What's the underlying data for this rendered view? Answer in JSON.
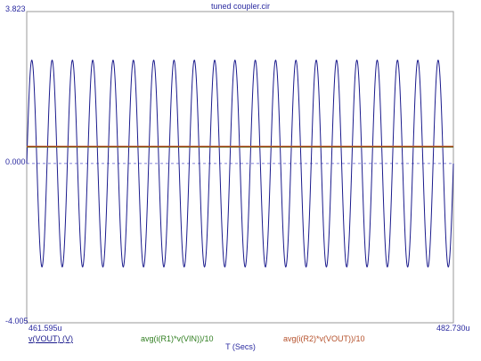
{
  "chart_data": {
    "type": "line",
    "title": "tuned coupler.cir",
    "xlabel": "T (Secs)",
    "ylabel": "",
    "x_unit_suffix": "u",
    "xlim": [
      461.595,
      482.73
    ],
    "ylim": [
      -4.005,
      3.823
    ],
    "x_tick_labels": [
      "461.595u",
      "482.730u"
    ],
    "y_tick_labels": [
      "3.823",
      "0.000",
      "-4.005"
    ],
    "grid": false,
    "zero_line": "dashed",
    "legend_placement": "bottom",
    "series": [
      {
        "name": "v(VOUT) (V)",
        "color": "#1a1a8c",
        "kind": "sine",
        "amplitude": 2.6,
        "offset": 0.0,
        "cycles": 21
      },
      {
        "name": "avg(i(R1)*v(VIN))/10",
        "color": "#2e7d1e",
        "kind": "constant",
        "value": 0.42
      },
      {
        "name": "avg(i(R2)*v(VOUT))/10",
        "color": "#b5502a",
        "kind": "constant",
        "value": 0.43
      }
    ]
  },
  "colors": {
    "axis_text": "#2a2aa0",
    "frame": "#9a9a9a",
    "zero_line": "#5a5acc"
  }
}
